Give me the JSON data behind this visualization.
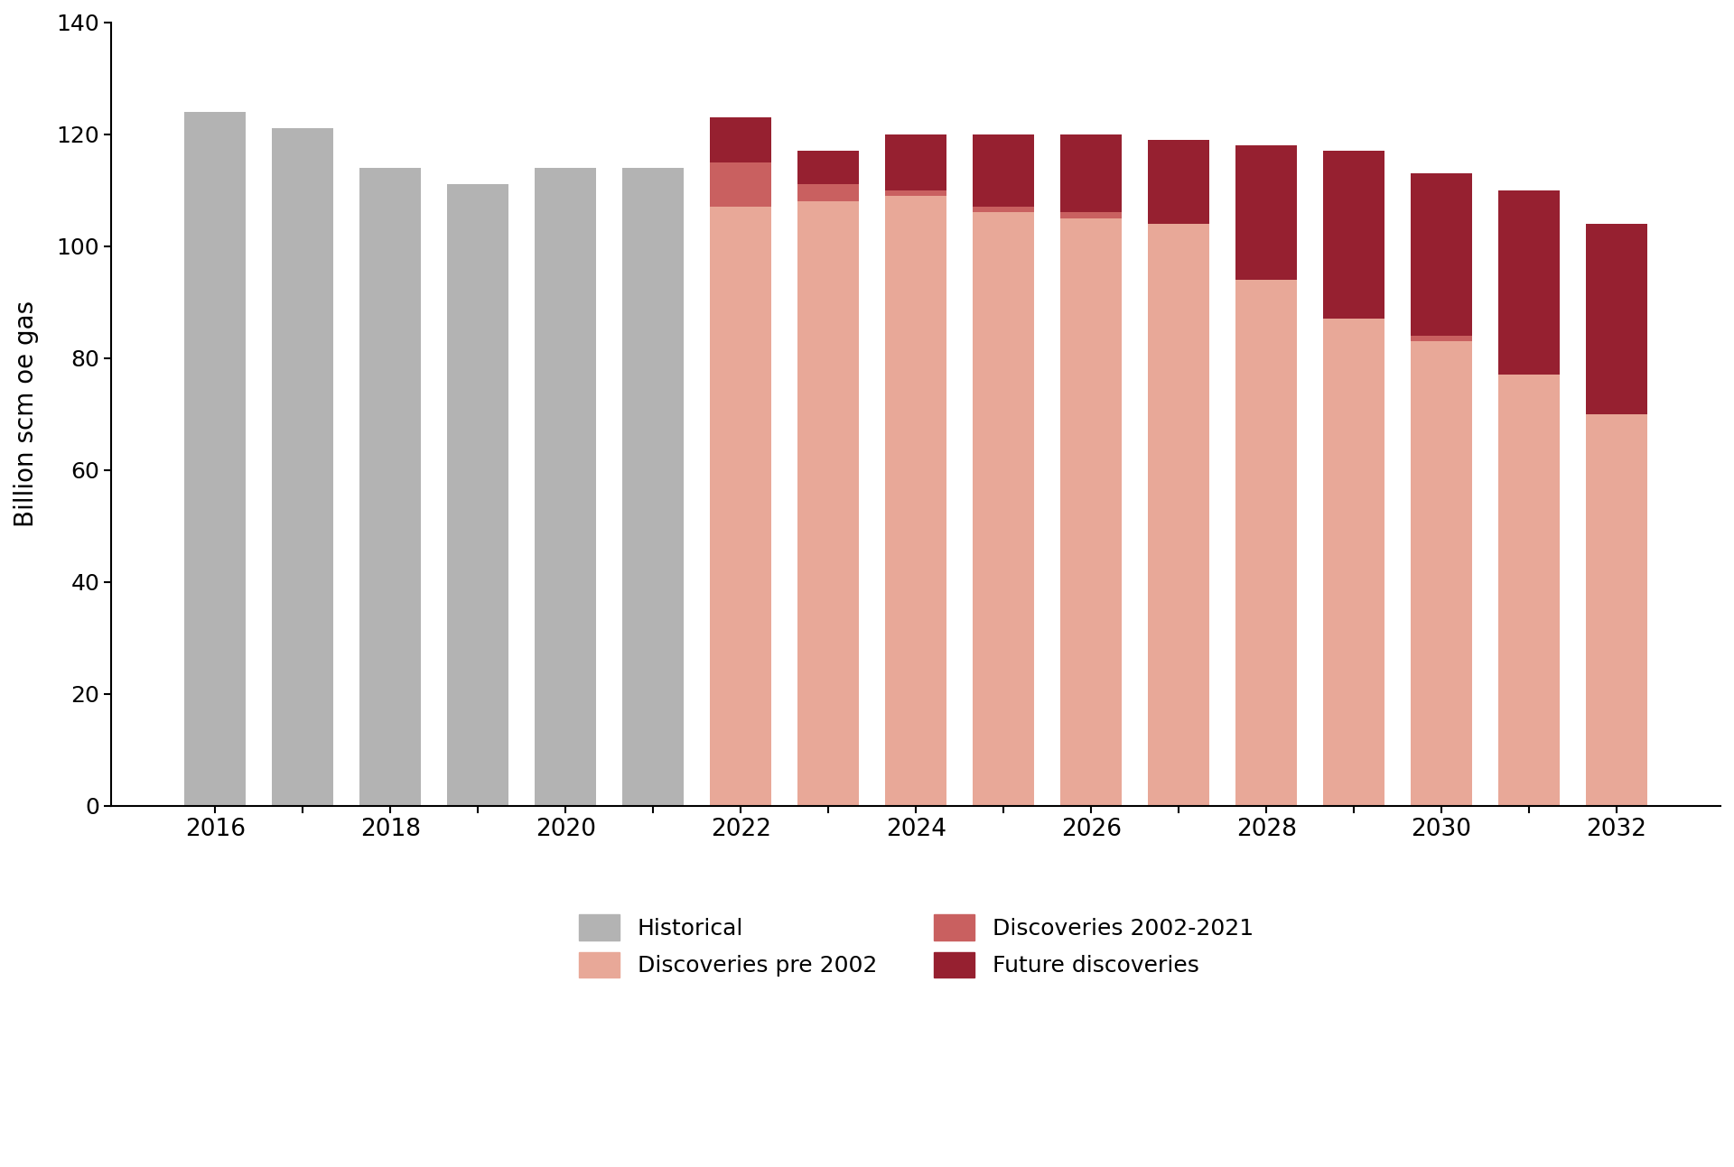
{
  "years": [
    2016,
    2017,
    2018,
    2019,
    2020,
    2021,
    2022,
    2023,
    2024,
    2025,
    2026,
    2027,
    2028,
    2029,
    2030,
    2031,
    2032
  ],
  "historical": [
    124,
    121,
    114,
    111,
    114,
    114,
    0,
    0,
    0,
    0,
    0,
    0,
    0,
    0,
    0,
    0,
    0
  ],
  "pre2002": [
    0,
    0,
    0,
    0,
    0,
    0,
    107,
    108,
    109,
    106,
    105,
    104,
    94,
    87,
    83,
    77,
    70
  ],
  "disc2002": [
    0,
    0,
    0,
    0,
    0,
    0,
    8,
    3,
    1,
    1,
    1,
    0,
    0,
    0,
    1,
    0,
    0
  ],
  "future": [
    0,
    0,
    0,
    0,
    0,
    0,
    8,
    6,
    10,
    13,
    14,
    15,
    24,
    30,
    29,
    33,
    34
  ],
  "color_historical": "#b3b3b3",
  "color_pre2002": "#e8a898",
  "color_disc2002": "#c96060",
  "color_future": "#962030",
  "ylabel": "Billion scm oe gas",
  "ylim": [
    0,
    140
  ],
  "yticks": [
    0,
    20,
    40,
    60,
    80,
    100,
    120,
    140
  ],
  "legend_labels": [
    "Historical",
    "Discoveries pre 2002",
    "Discoveries 2002-2021",
    "Future discoveries"
  ],
  "bar_width": 0.7,
  "axis_fontsize": 14,
  "legend_fontsize": 18
}
